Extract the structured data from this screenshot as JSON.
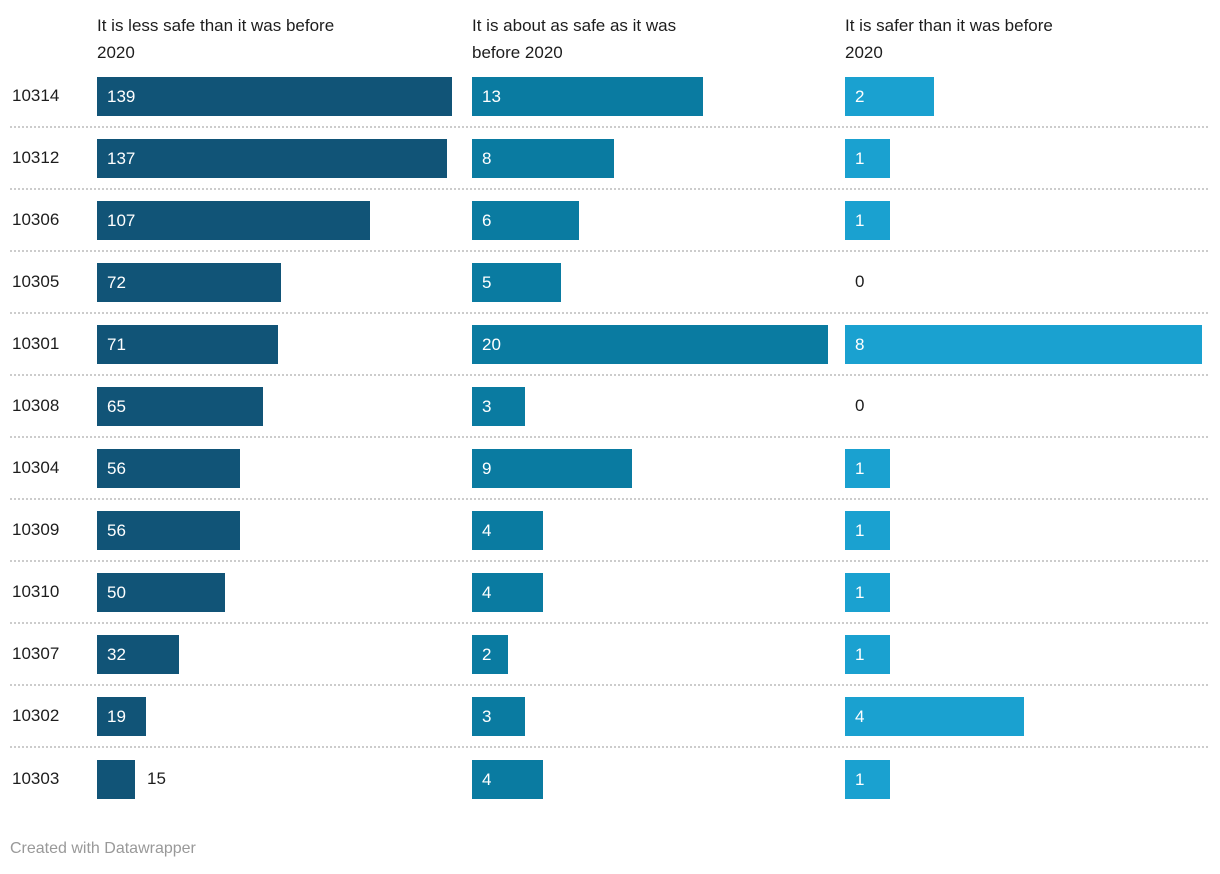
{
  "chart_data": {
    "type": "bar",
    "subtype": "split-bars-small-multiples",
    "title": "",
    "categories": [
      "10314",
      "10312",
      "10306",
      "10305",
      "10301",
      "10308",
      "10304",
      "10309",
      "10310",
      "10307",
      "10302",
      "10303"
    ],
    "series": [
      {
        "name": "It is less safe than it was before 2020",
        "header_lines": [
          "It is less safe than it was before",
          "2020"
        ],
        "color": "#115477",
        "xlim": [
          0,
          139
        ],
        "values": [
          139,
          137,
          107,
          72,
          71,
          65,
          56,
          56,
          50,
          32,
          19,
          15
        ]
      },
      {
        "name": "It is about as safe as it was before 2020",
        "header_lines": [
          "It is about as safe as it was",
          "before 2020"
        ],
        "color": "#0a7ba1",
        "xlim": [
          0,
          20
        ],
        "values": [
          13,
          8,
          6,
          5,
          20,
          3,
          9,
          4,
          4,
          2,
          3,
          4
        ]
      },
      {
        "name": "It is safer than it was before 2020",
        "header_lines": [
          "It is safer than it was before",
          "2020"
        ],
        "color": "#1aa1d0",
        "xlim": [
          0,
          8
        ],
        "values": [
          2,
          1,
          1,
          0,
          8,
          0,
          1,
          1,
          1,
          1,
          4,
          1
        ]
      }
    ],
    "grid": "dotted-row-separators",
    "legend_position": "column-headers",
    "value_labels": "inside-bars-white, outside-dark-when-bar-too-small, zero-shown-as-text"
  },
  "colors": {
    "series_dark": "#115477",
    "series_mid": "#0a7ba1",
    "series_light": "#1aa1d0",
    "text": "#1d1d1d",
    "separator": "#cccccc",
    "credit": "#999999",
    "background": "#ffffff"
  },
  "footer": {
    "credit": "Created with Datawrapper"
  }
}
